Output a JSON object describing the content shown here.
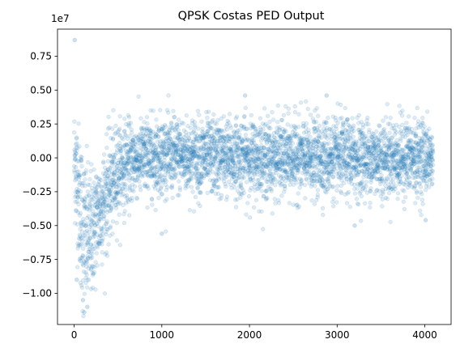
{
  "chart_data": {
    "type": "scatter",
    "title": "QPSK Costas PED Output",
    "xlabel": "",
    "ylabel": "",
    "y_offset_label": "1e7",
    "xlim": [
      -190,
      4300
    ],
    "ylim": [
      -12300000,
      9500000
    ],
    "x_ticks": [
      0,
      1000,
      2000,
      3000,
      4000
    ],
    "x_tick_labels": [
      "0",
      "1000",
      "2000",
      "3000",
      "4000"
    ],
    "y_ticks": [
      -10000000,
      -7500000,
      -5000000,
      -2500000,
      0,
      2500000,
      5000000,
      7500000
    ],
    "y_tick_labels": [
      "−1.00",
      "−0.75",
      "−0.50",
      "−0.25",
      "0.00",
      "0.25",
      "0.50",
      "0.75"
    ],
    "grid": false,
    "marker_color": "#1f77b4",
    "marker_alpha": 0.15,
    "n_points": 4096,
    "series": [
      {
        "name": "",
        "envelope": {
          "x": [
            0,
            50,
            100,
            150,
            200,
            300,
            400,
            500,
            700,
            1000,
            2000,
            3000,
            4000,
            4096
          ],
          "mean": [
            0,
            -2500000,
            -5500000,
            -6000000,
            -5500000,
            -3800000,
            -2300000,
            -900000,
            -100000,
            200000,
            0,
            0,
            0,
            0
          ],
          "spread": [
            2000000,
            2500000,
            3000000,
            2700000,
            2300000,
            2000000,
            2000000,
            1700000,
            1400000,
            1400000,
            1400000,
            1400000,
            1400000,
            900000
          ]
        },
        "points": [
          {
            "x": 6,
            "y": 8700000
          },
          {
            "x": 30,
            "y": -9000000
          },
          {
            "x": 70,
            "y": -7600000
          },
          {
            "x": 100,
            "y": -10500000
          },
          {
            "x": 115,
            "y": -11400000
          },
          {
            "x": 150,
            "y": -11000000
          },
          {
            "x": 1000,
            "y": -5600000
          },
          {
            "x": 1950,
            "y": 4600000
          },
          {
            "x": 2880,
            "y": 4600000
          },
          {
            "x": 3200,
            "y": -5000000
          },
          {
            "x": 4010,
            "y": -4600000
          }
        ]
      }
    ]
  }
}
